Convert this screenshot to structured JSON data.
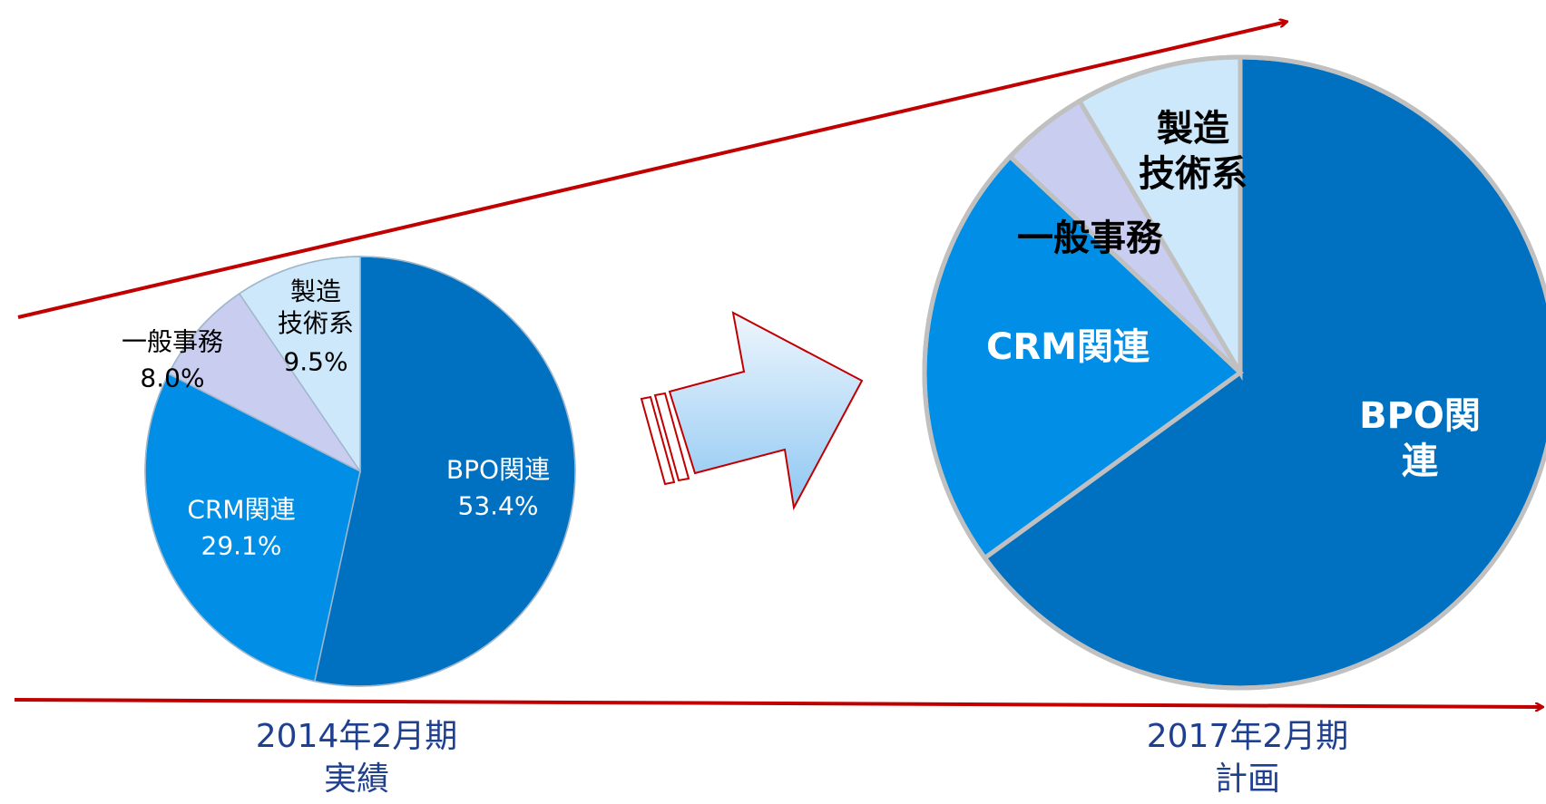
{
  "chart_data": [
    {
      "type": "pie",
      "caption": "2014年2月期\n実績",
      "categories": [
        "BPO関連",
        "CRM関連",
        "一般事務",
        "製造\n技術系"
      ],
      "values": [
        53.4,
        29.1,
        8.0,
        9.5
      ],
      "value_labels": [
        "53.4%",
        "29.1%",
        "8.0%",
        "9.5%"
      ],
      "colors": [
        "#0070c0",
        "#008ee6",
        "#c9cdf0",
        "#cde8fb"
      ]
    },
    {
      "type": "pie",
      "caption": "2017年2月期\n計画",
      "categories": [
        "BPO関連",
        "CRM関連",
        "一般事務",
        "製造\n技術系"
      ],
      "values": [
        65,
        22,
        4.5,
        8.5
      ],
      "colors": [
        "#0070c0",
        "#008ee6",
        "#c9cdf0",
        "#cde8fb"
      ]
    }
  ]
}
